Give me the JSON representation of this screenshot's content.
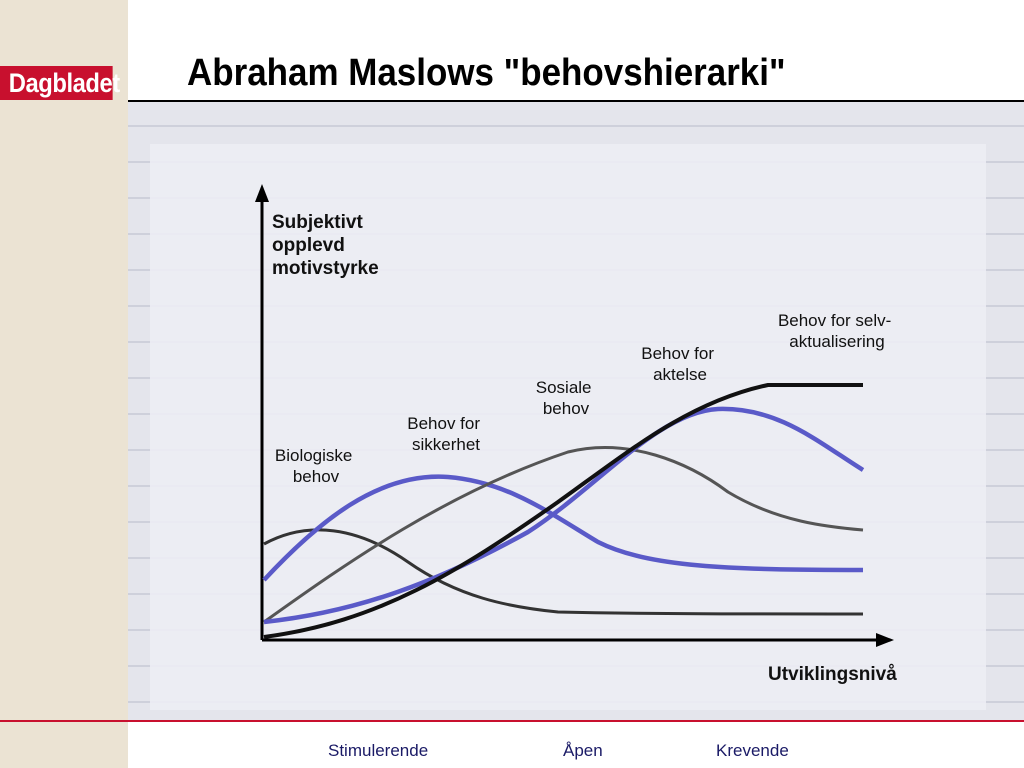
{
  "slide": {
    "title": "Abraham Maslows \"behovshierarki\"",
    "logo_text": "Dagbladet"
  },
  "diagram": {
    "y_axis_label": [
      "Subjektivt",
      "opplevd",
      "motivstyrke"
    ],
    "x_axis_label": "Utviklingsnivå",
    "curves": [
      {
        "label": [
          "Biologiske",
          "behov"
        ],
        "color": "#333333"
      },
      {
        "label": [
          "Behov for",
          "sikkerhet"
        ],
        "color": "#5a5ac8"
      },
      {
        "label": [
          "Sosiale",
          "behov"
        ],
        "color": "#555555"
      },
      {
        "label": [
          "Behov for",
          "aktelse"
        ],
        "color": "#5a5ac8"
      },
      {
        "label": [
          "Behov for selv-",
          "aktualisering"
        ],
        "color": "#111111"
      }
    ]
  },
  "footer": {
    "items": [
      "Stimulerende",
      "Åpen",
      "Krevende"
    ]
  },
  "colors": {
    "brand_red": "#c8102e",
    "sidebar": "#ebe3d3",
    "footer_text": "#1a1a66"
  }
}
